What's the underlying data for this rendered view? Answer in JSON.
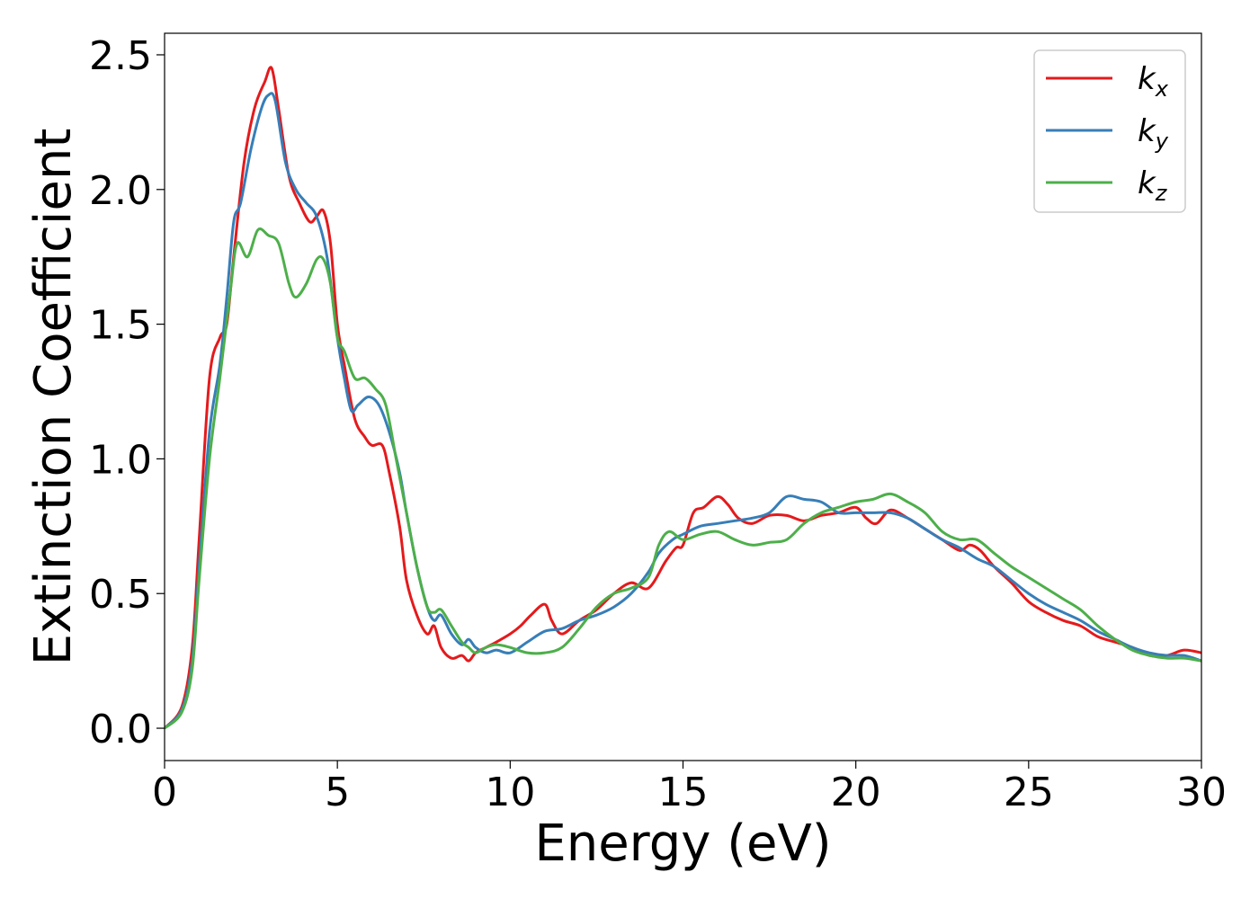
{
  "chart_data": {
    "type": "line",
    "xlabel": "Energy (eV)",
    "ylabel": "Extinction Coefficient",
    "xlim": [
      0,
      30
    ],
    "ylim": [
      -0.12,
      2.58
    ],
    "xticks": [
      0,
      5,
      10,
      15,
      20,
      25,
      30
    ],
    "yticks": [
      0.0,
      0.5,
      1.0,
      1.5,
      2.0,
      2.5
    ],
    "xtick_labels": [
      "0",
      "5",
      "10",
      "15",
      "20",
      "25",
      "30"
    ],
    "ytick_labels": [
      "0.0",
      "0.5",
      "1.0",
      "1.5",
      "2.0",
      "2.5"
    ],
    "grid": false,
    "legend_position": "top-right",
    "series": [
      {
        "name": "k_x",
        "label_main": "k",
        "label_sub": "x",
        "color": "#e41a1c",
        "x": [
          0,
          0.5,
          0.8,
          1.0,
          1.3,
          1.6,
          1.8,
          2.0,
          2.3,
          2.6,
          2.9,
          3.1,
          3.3,
          3.6,
          3.9,
          4.2,
          4.4,
          4.6,
          4.8,
          5.0,
          5.2,
          5.5,
          5.8,
          6.0,
          6.3,
          6.5,
          6.8,
          7.0,
          7.3,
          7.6,
          7.8,
          8.0,
          8.3,
          8.6,
          8.8,
          9.0,
          9.3,
          9.6,
          10.0,
          10.3,
          10.6,
          11.0,
          11.2,
          11.5,
          12.0,
          12.5,
          13.0,
          13.5,
          14.0,
          14.5,
          14.8,
          15.0,
          15.3,
          15.6,
          16.0,
          16.3,
          16.6,
          17.0,
          17.5,
          18.0,
          18.5,
          19.0,
          19.5,
          20.0,
          20.3,
          20.6,
          21.0,
          21.5,
          22.0,
          22.5,
          23.0,
          23.3,
          23.6,
          24.0,
          24.5,
          25.0,
          25.5,
          26.0,
          26.5,
          27.0,
          27.5,
          28.0,
          28.5,
          29.0,
          29.5,
          30.0
        ],
        "y": [
          0.0,
          0.08,
          0.3,
          0.7,
          1.3,
          1.45,
          1.5,
          1.75,
          2.1,
          2.3,
          2.4,
          2.45,
          2.3,
          2.05,
          1.95,
          1.88,
          1.9,
          1.92,
          1.8,
          1.5,
          1.35,
          1.15,
          1.08,
          1.05,
          1.05,
          0.95,
          0.75,
          0.55,
          0.42,
          0.35,
          0.38,
          0.3,
          0.26,
          0.27,
          0.25,
          0.28,
          0.3,
          0.32,
          0.35,
          0.38,
          0.42,
          0.46,
          0.4,
          0.35,
          0.4,
          0.44,
          0.5,
          0.54,
          0.52,
          0.62,
          0.67,
          0.68,
          0.8,
          0.82,
          0.86,
          0.83,
          0.78,
          0.76,
          0.79,
          0.79,
          0.77,
          0.79,
          0.8,
          0.82,
          0.78,
          0.76,
          0.81,
          0.78,
          0.74,
          0.7,
          0.66,
          0.68,
          0.66,
          0.6,
          0.54,
          0.47,
          0.43,
          0.4,
          0.38,
          0.34,
          0.32,
          0.3,
          0.27,
          0.27,
          0.29,
          0.28
        ]
      },
      {
        "name": "k_y",
        "label_main": "k",
        "label_sub": "y",
        "color": "#377eb8",
        "x": [
          0,
          0.5,
          0.8,
          1.0,
          1.3,
          1.6,
          1.8,
          2.0,
          2.2,
          2.5,
          2.8,
          3.0,
          3.2,
          3.5,
          3.8,
          4.1,
          4.4,
          4.7,
          5.0,
          5.2,
          5.4,
          5.6,
          5.9,
          6.2,
          6.5,
          6.8,
          7.0,
          7.3,
          7.6,
          7.8,
          8.0,
          8.3,
          8.6,
          8.8,
          9.0,
          9.3,
          9.6,
          10.0,
          10.5,
          11.0,
          11.5,
          12.0,
          12.5,
          13.0,
          13.5,
          14.0,
          14.3,
          14.7,
          15.0,
          15.5,
          16.0,
          16.5,
          17.0,
          17.5,
          18.0,
          18.5,
          19.0,
          19.5,
          20.0,
          20.5,
          21.0,
          21.5,
          22.0,
          22.5,
          23.0,
          23.5,
          24.0,
          24.5,
          25.0,
          25.5,
          26.0,
          26.5,
          27.0,
          27.5,
          28.0,
          28.5,
          29.0,
          29.5,
          30.0
        ],
        "y": [
          0.0,
          0.07,
          0.25,
          0.6,
          1.1,
          1.35,
          1.6,
          1.88,
          1.95,
          2.15,
          2.3,
          2.35,
          2.33,
          2.1,
          2.0,
          1.95,
          1.9,
          1.75,
          1.45,
          1.3,
          1.18,
          1.2,
          1.23,
          1.2,
          1.1,
          0.95,
          0.8,
          0.6,
          0.45,
          0.4,
          0.42,
          0.35,
          0.31,
          0.33,
          0.3,
          0.28,
          0.29,
          0.28,
          0.32,
          0.36,
          0.37,
          0.4,
          0.42,
          0.45,
          0.5,
          0.58,
          0.65,
          0.7,
          0.72,
          0.75,
          0.76,
          0.77,
          0.78,
          0.8,
          0.86,
          0.85,
          0.84,
          0.8,
          0.8,
          0.8,
          0.8,
          0.78,
          0.74,
          0.7,
          0.67,
          0.63,
          0.6,
          0.55,
          0.5,
          0.46,
          0.43,
          0.4,
          0.36,
          0.33,
          0.3,
          0.28,
          0.27,
          0.27,
          0.25
        ]
      },
      {
        "name": "k_z",
        "label_main": "k",
        "label_sub": "z",
        "color": "#4daf4a",
        "x": [
          0,
          0.5,
          0.8,
          1.0,
          1.3,
          1.6,
          1.9,
          2.1,
          2.4,
          2.7,
          3.0,
          3.3,
          3.6,
          3.8,
          4.1,
          4.4,
          4.6,
          4.8,
          5.0,
          5.2,
          5.5,
          5.8,
          6.1,
          6.4,
          6.7,
          7.0,
          7.3,
          7.6,
          7.8,
          8.0,
          8.3,
          8.6,
          8.8,
          9.0,
          9.3,
          9.6,
          10.0,
          10.5,
          11.0,
          11.5,
          12.0,
          12.5,
          13.0,
          13.5,
          14.0,
          14.3,
          14.6,
          15.0,
          15.5,
          16.0,
          16.5,
          17.0,
          17.5,
          18.0,
          18.5,
          19.0,
          19.5,
          20.0,
          20.5,
          21.0,
          21.5,
          22.0,
          22.5,
          23.0,
          23.5,
          24.0,
          24.5,
          25.0,
          25.5,
          26.0,
          26.5,
          27.0,
          27.5,
          28.0,
          28.5,
          29.0,
          29.5,
          30.0
        ],
        "y": [
          0.0,
          0.06,
          0.22,
          0.55,
          1.0,
          1.3,
          1.62,
          1.8,
          1.75,
          1.85,
          1.83,
          1.8,
          1.65,
          1.6,
          1.65,
          1.74,
          1.74,
          1.65,
          1.45,
          1.4,
          1.3,
          1.3,
          1.26,
          1.2,
          1.0,
          0.8,
          0.6,
          0.45,
          0.43,
          0.44,
          0.38,
          0.32,
          0.3,
          0.28,
          0.3,
          0.31,
          0.3,
          0.28,
          0.28,
          0.3,
          0.37,
          0.45,
          0.5,
          0.52,
          0.56,
          0.68,
          0.73,
          0.7,
          0.72,
          0.73,
          0.7,
          0.68,
          0.69,
          0.7,
          0.76,
          0.8,
          0.82,
          0.84,
          0.85,
          0.87,
          0.84,
          0.8,
          0.73,
          0.7,
          0.7,
          0.65,
          0.6,
          0.56,
          0.52,
          0.48,
          0.44,
          0.38,
          0.33,
          0.29,
          0.27,
          0.26,
          0.26,
          0.25
        ]
      }
    ]
  }
}
